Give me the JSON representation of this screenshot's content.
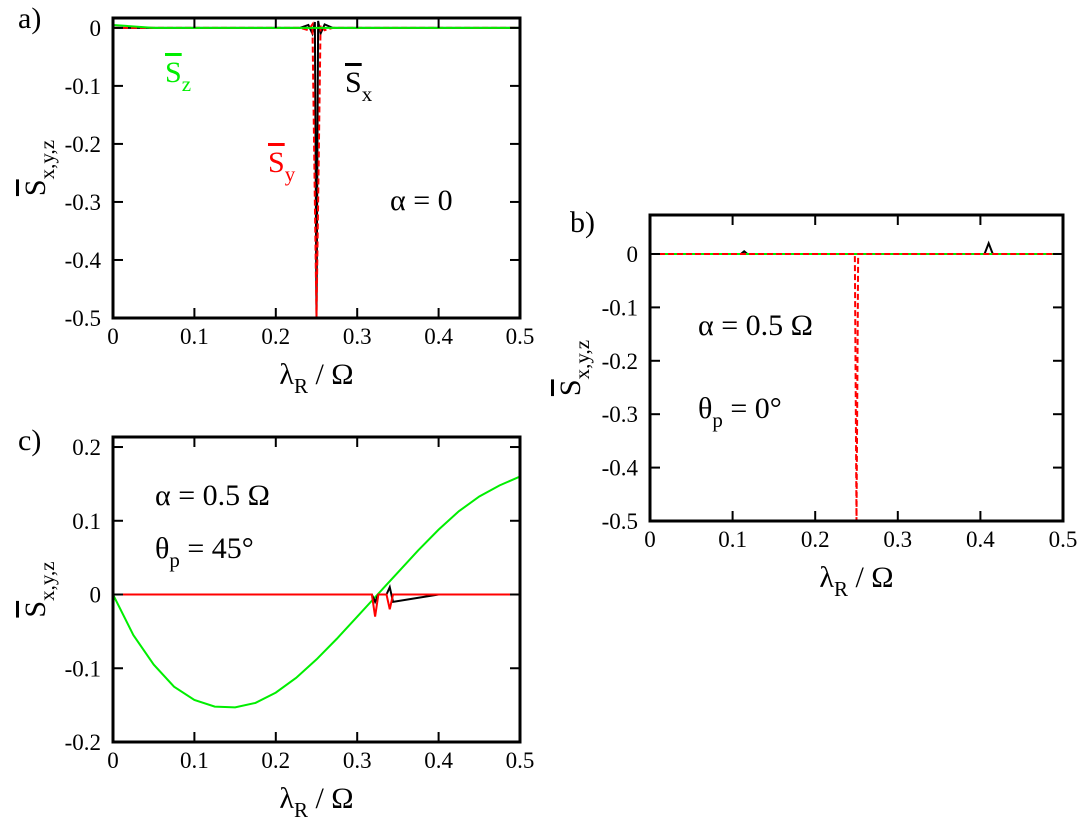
{
  "chart_data": [
    {
      "type": "line",
      "label": "a)",
      "xlabel": {
        "text": "λ",
        "sub": "R",
        "tail": " / Ω"
      },
      "ylabel": {
        "text": "S",
        "sub": "x,y,z",
        "overline": true
      },
      "xlim": [
        0,
        0.5
      ],
      "ylim": [
        -0.5,
        0.017
      ],
      "xticks": [
        0,
        0.1,
        0.2,
        0.3,
        0.4,
        0.5
      ],
      "yticks": [
        0,
        -0.1,
        -0.2,
        -0.3,
        -0.4,
        -0.5
      ],
      "annotations": [
        {
          "text": "α = 0"
        }
      ],
      "series": [
        {
          "name": {
            "text": "S",
            "sub": "x",
            "overline": true
          },
          "color": "#000000",
          "style": "solid",
          "x": [
            0,
            0.05,
            0.1,
            0.15,
            0.2,
            0.23,
            0.24,
            0.245,
            0.248,
            0.25,
            0.252,
            0.255,
            0.26,
            0.27,
            0.3,
            0.35,
            0.4,
            0.45,
            0.5
          ],
          "values": [
            0,
            0,
            0,
            0,
            0,
            0,
            0.005,
            -0.01,
            0.01,
            -0.5,
            0.012,
            -0.01,
            0.006,
            0,
            0,
            0,
            0,
            0,
            0
          ]
        },
        {
          "name": {
            "text": "S",
            "sub": "y",
            "overline": true
          },
          "color": "#ff0000",
          "style": "dashed",
          "x": [
            0,
            0.05,
            0.1,
            0.15,
            0.2,
            0.23,
            0.24,
            0.245,
            0.248,
            0.25,
            0.252,
            0.255,
            0.26,
            0.27,
            0.3,
            0.35,
            0.4,
            0.45,
            0.5
          ],
          "values": [
            0,
            0,
            0,
            0,
            0,
            0,
            -0.004,
            0.006,
            -0.3,
            -0.5,
            -0.3,
            0.005,
            -0.004,
            0,
            0,
            0,
            0,
            0,
            0
          ]
        },
        {
          "name": {
            "text": "S",
            "sub": "z",
            "overline": true
          },
          "color": "#00ee00",
          "style": "solid",
          "x": [
            0,
            0.05,
            0.1,
            0.15,
            0.2,
            0.23,
            0.24,
            0.245,
            0.248,
            0.25,
            0.252,
            0.255,
            0.26,
            0.27,
            0.3,
            0.35,
            0.4,
            0.45,
            0.5
          ],
          "values": [
            0.005,
            0,
            0,
            0,
            0,
            0,
            0,
            0,
            0,
            0,
            0,
            0,
            0,
            0,
            0,
            0,
            0,
            0,
            0
          ]
        }
      ]
    },
    {
      "type": "line",
      "label": "b)",
      "xlabel": {
        "text": "λ",
        "sub": "R",
        "tail": " / Ω"
      },
      "ylabel": {
        "text": "S",
        "sub": "x,y,z",
        "overline": true
      },
      "xlim": [
        0,
        0.5
      ],
      "ylim": [
        -0.5,
        0.073
      ],
      "xticks": [
        0,
        0.1,
        0.2,
        0.3,
        0.4,
        0.5
      ],
      "yticks": [
        0,
        -0.1,
        -0.2,
        -0.3,
        -0.4,
        -0.5
      ],
      "annotations": [
        {
          "text": "α = 0.5 Ω"
        },
        {
          "text": "θ",
          "sub": "p",
          "tail": " = 0°"
        }
      ],
      "series": [
        {
          "color": "#000000",
          "style": "solid",
          "x": [
            0,
            0.11,
            0.114,
            0.118,
            0.2,
            0.248,
            0.25,
            0.252,
            0.3,
            0.405,
            0.41,
            0.415,
            0.5
          ],
          "values": [
            0,
            0,
            0.005,
            0,
            0,
            0,
            0,
            0,
            0,
            0,
            0.02,
            0,
            0
          ]
        },
        {
          "color": "#00ee00",
          "style": "solid",
          "x": [
            0,
            0.11,
            0.114,
            0.118,
            0.2,
            0.248,
            0.25,
            0.252,
            0.3,
            0.405,
            0.41,
            0.415,
            0.5
          ],
          "values": [
            0,
            0,
            0,
            0,
            0,
            0,
            0,
            0,
            0,
            0,
            0,
            0,
            0
          ]
        },
        {
          "color": "#ff0000",
          "style": "dashed",
          "x": [
            0,
            0.11,
            0.114,
            0.118,
            0.2,
            0.248,
            0.25,
            0.252,
            0.3,
            0.405,
            0.41,
            0.415,
            0.5
          ],
          "values": [
            0,
            0,
            0,
            0,
            0,
            0,
            -0.5,
            0,
            0,
            0,
            0,
            0,
            0
          ]
        }
      ]
    },
    {
      "type": "line",
      "label": "c)",
      "xlabel": {
        "text": "λ",
        "sub": "R",
        "tail": " / Ω"
      },
      "ylabel": {
        "text": "S",
        "sub": "x,y,z",
        "overline": true
      },
      "xlim": [
        0,
        0.5
      ],
      "ylim": [
        -0.2,
        0.2136
      ],
      "xticks": [
        0,
        0.1,
        0.2,
        0.3,
        0.4,
        0.5
      ],
      "yticks": [
        0.2,
        0.1,
        0,
        -0.1,
        -0.2
      ],
      "annotations": [
        {
          "text": "α = 0.5 Ω"
        },
        {
          "text": "θ",
          "sub": "p",
          "tail": " = 45°"
        }
      ],
      "series": [
        {
          "color": "#00ee00",
          "style": "solid",
          "x": [
            0,
            0.025,
            0.05,
            0.075,
            0.1,
            0.125,
            0.15,
            0.175,
            0.2,
            0.225,
            0.25,
            0.275,
            0.3,
            0.325,
            0.35,
            0.375,
            0.4,
            0.425,
            0.45,
            0.475,
            0.5
          ],
          "values": [
            0,
            -0.055,
            -0.095,
            -0.125,
            -0.143,
            -0.152,
            -0.153,
            -0.147,
            -0.133,
            -0.113,
            -0.088,
            -0.06,
            -0.03,
            0,
            0.03,
            0.06,
            0.088,
            0.113,
            0.133,
            0.148,
            0.16
          ]
        },
        {
          "color": "#000000",
          "style": "solid",
          "x": [
            0,
            0.1,
            0.2,
            0.3,
            0.318,
            0.322,
            0.326,
            0.336,
            0.34,
            0.344,
            0.4,
            0.5
          ],
          "values": [
            0,
            0,
            0,
            0,
            0,
            -0.01,
            0,
            0,
            0.01,
            -0.01,
            0,
            0
          ]
        },
        {
          "color": "#ff0000",
          "style": "solid",
          "x": [
            0,
            0.1,
            0.2,
            0.3,
            0.318,
            0.322,
            0.326,
            0.336,
            0.34,
            0.344,
            0.4,
            0.5
          ],
          "values": [
            0,
            0,
            0,
            0,
            0,
            -0.03,
            0,
            0,
            -0.02,
            0,
            0,
            0
          ]
        }
      ]
    }
  ]
}
